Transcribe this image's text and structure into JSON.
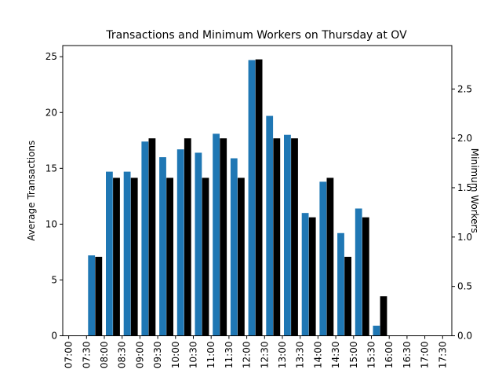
{
  "chart_data": {
    "type": "bar",
    "title": "Transactions and Minimum Workers on Thursday at OV",
    "categories": [
      "07:00",
      "07:30",
      "08:00",
      "08:30",
      "09:00",
      "09:30",
      "10:00",
      "10:30",
      "11:00",
      "11:30",
      "12:00",
      "12:30",
      "13:00",
      "13:30",
      "14:00",
      "14:30",
      "15:00",
      "15:30",
      "16:00",
      "16:30",
      "17:00",
      "17:30"
    ],
    "series": [
      {
        "name": "Average Transactions",
        "axis": "left",
        "color": "#1f77b4",
        "values": [
          0,
          7.2,
          14.7,
          14.7,
          17.4,
          16.0,
          16.7,
          16.4,
          18.1,
          15.9,
          24.7,
          19.7,
          18.0,
          11.0,
          13.8,
          9.2,
          11.4,
          0.9,
          0,
          0,
          0,
          0
        ]
      },
      {
        "name": "Minimum Workers",
        "axis": "right",
        "color": "#000000",
        "values": [
          0,
          0.8,
          1.6,
          1.6,
          2.0,
          1.6,
          2.0,
          1.6,
          2.0,
          1.6,
          2.8,
          2.0,
          2.0,
          1.2,
          1.6,
          0.8,
          1.2,
          0.4,
          0,
          0,
          0,
          0
        ]
      }
    ],
    "ylabel": "Average Transactions",
    "ylabel_right": "Minimum Workers",
    "ylim": [
      0,
      26
    ],
    "ylim_right": [
      0,
      2.94
    ],
    "yticks": [
      0,
      5,
      10,
      15,
      20,
      25
    ],
    "yticks_right": [
      "0.0",
      "0.5",
      "1.0",
      "1.5",
      "2.0",
      "2.5"
    ],
    "grid": false
  }
}
